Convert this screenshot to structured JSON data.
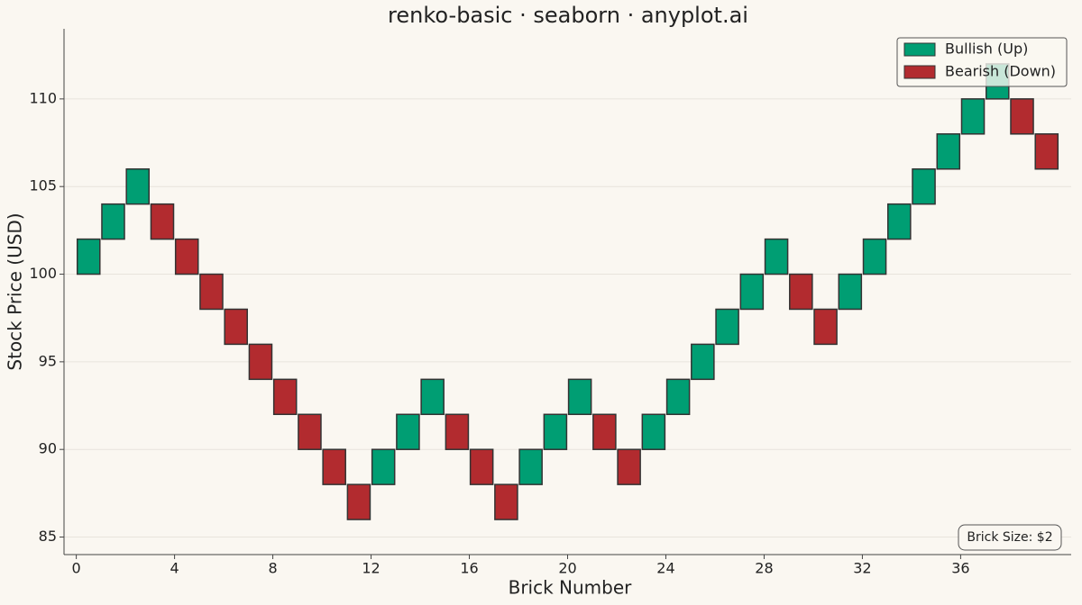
{
  "chart_data": {
    "type": "renko",
    "title": "renko-basic · seaborn · anyplot.ai",
    "xlabel": "Brick Number",
    "ylabel": "Stock Price (USD)",
    "annotation": "Brick Size: $2",
    "brick_size": 2,
    "xlim": [
      -0.5,
      40.5
    ],
    "ylim": [
      84,
      114
    ],
    "xticks": [
      0,
      4,
      8,
      12,
      16,
      20,
      24,
      28,
      32,
      36
    ],
    "yticks": [
      85,
      90,
      95,
      100,
      105,
      110
    ],
    "grid": true,
    "legend": "upper right",
    "series": [
      {
        "name": "Bullish (Up)",
        "color": "#009e73",
        "x": [
          0,
          1,
          2,
          12,
          13,
          14,
          18,
          19,
          20,
          23,
          24,
          25,
          26,
          27,
          28,
          31,
          32,
          33,
          34,
          35,
          36,
          37
        ],
        "values": [
          102,
          104,
          106,
          90,
          92,
          94,
          90,
          92,
          94,
          92,
          94,
          96,
          98,
          100,
          102,
          100,
          102,
          104,
          106,
          108,
          110,
          112
        ]
      },
      {
        "name": "Bearish (Down)",
        "color": "#b22b2f",
        "x": [
          3,
          4,
          5,
          6,
          7,
          8,
          9,
          10,
          11,
          15,
          16,
          17,
          21,
          22,
          29,
          30,
          38,
          39
        ],
        "values": [
          102,
          100,
          98,
          96,
          94,
          92,
          90,
          88,
          86,
          90,
          88,
          86,
          90,
          88,
          98,
          96,
          108,
          106
        ]
      }
    ]
  }
}
